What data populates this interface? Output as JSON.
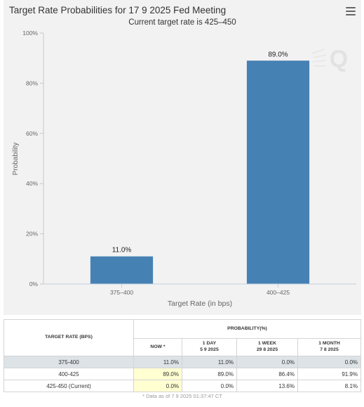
{
  "header": {
    "title": "Target Rate Probabilities for 17 9 2025 Fed Meeting",
    "subtitle": "Current target rate is 425–450",
    "menu_icon": "hamburger-menu-icon",
    "watermark_icon": "q-logo-icon",
    "watermark_text": "Q"
  },
  "chart_data": {
    "type": "bar",
    "title": "Target Rate Probabilities for 17 9 2025 Fed Meeting",
    "subtitle": "Current target rate is 425–450",
    "xlabel": "Target Rate (in bps)",
    "ylabel": "Probability",
    "categories": [
      "375–400",
      "400–425"
    ],
    "values": [
      11.0,
      89.0
    ],
    "data_labels": [
      "11.0%",
      "89.0%"
    ],
    "ylim": [
      0,
      100
    ],
    "yticks": [
      0,
      20,
      40,
      60,
      80,
      100
    ],
    "ytick_labels": [
      "0%",
      "20%",
      "40%",
      "60%",
      "80%",
      "100%"
    ],
    "grid": false,
    "legend": "none",
    "bar_color": "#4681b4"
  },
  "table": {
    "rate_header": "TARGET RATE (BPS)",
    "prob_header": "PROBABILITY(%)",
    "columns": [
      {
        "line1": "NOW *",
        "line2": ""
      },
      {
        "line1": "1 DAY",
        "line2": "5 9 2025"
      },
      {
        "line1": "1 WEEK",
        "line2": "29 8 2025"
      },
      {
        "line1": "1 MONTH",
        "line2": "7 8 2025"
      }
    ],
    "rows": [
      {
        "rate": "375-400",
        "values": [
          "11.0%",
          "11.0%",
          "0.0%",
          "0.0%"
        ]
      },
      {
        "rate": "400-425",
        "values": [
          "89.0%",
          "89.0%",
          "86.4%",
          "91.9%"
        ]
      },
      {
        "rate": "425-450 (Current)",
        "values": [
          "0.0%",
          "0.0%",
          "13.6%",
          "8.1%"
        ]
      }
    ],
    "footnote": "* Data as of 7 9 2025 01:37:47 CT"
  }
}
